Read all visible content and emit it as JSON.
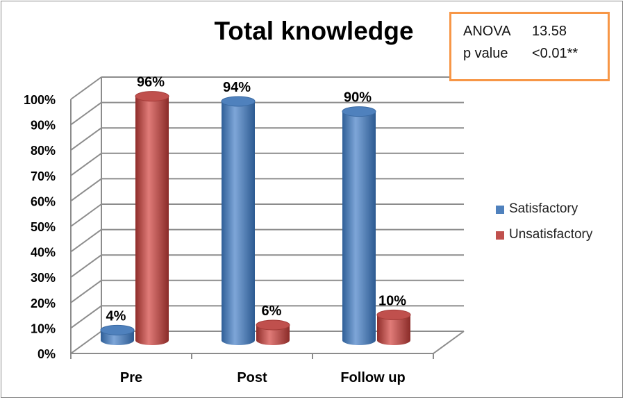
{
  "chart_data": {
    "type": "bar",
    "title": "Total knowledge",
    "categories": [
      "Pre",
      "Post",
      "Follow up"
    ],
    "series": [
      {
        "name": "Satisfactory",
        "values": [
          4,
          94,
          90
        ],
        "labels": [
          "4%",
          "94%",
          "90%"
        ],
        "color": "#4f81bd"
      },
      {
        "name": "Unsatisfactory",
        "values": [
          96,
          6,
          10
        ],
        "labels": [
          "96%",
          "6%",
          "10%"
        ],
        "color": "#c0504d"
      }
    ],
    "ylim": [
      0,
      100
    ],
    "yticks": [
      "0%",
      "10%",
      "20%",
      "30%",
      "40%",
      "50%",
      "60%",
      "70%",
      "80%",
      "90%",
      "100%"
    ],
    "grid": true,
    "style": "3d-cylinder",
    "legend_position": "right"
  },
  "stats": {
    "anova_label": "ANOVA",
    "anova_value": "13.58",
    "p_label": "p value",
    "p_value": "<0.01**"
  },
  "colors": {
    "stats_border": "#f79646",
    "grid": "#8c8c8c"
  }
}
